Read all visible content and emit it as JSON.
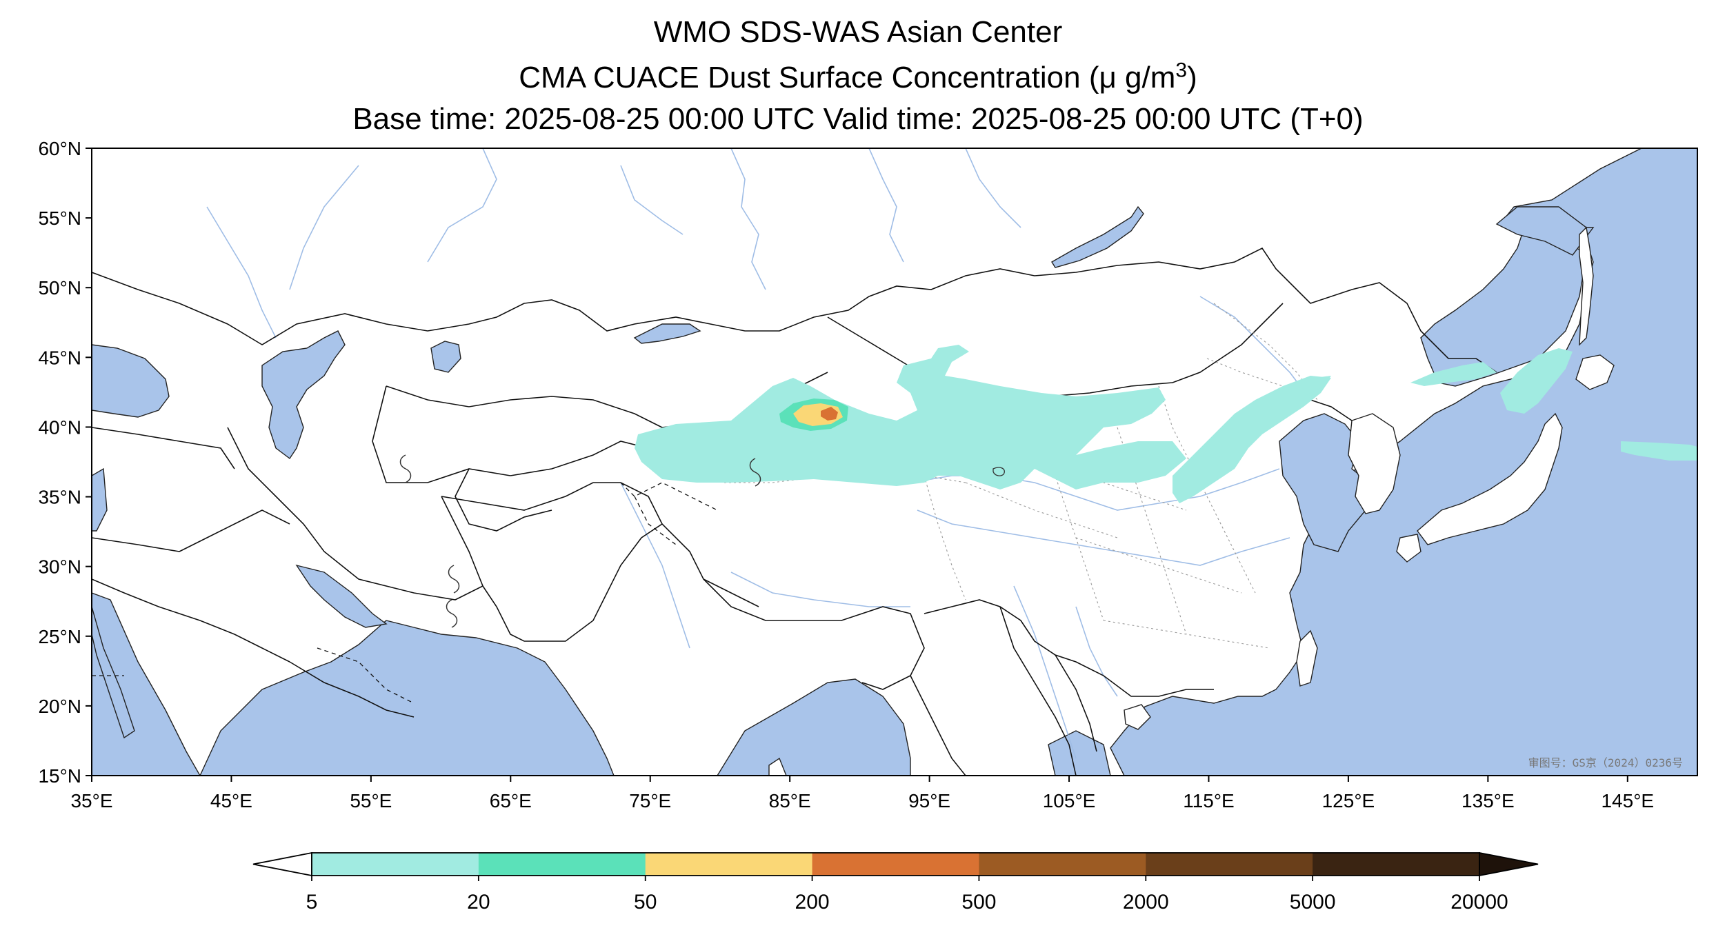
{
  "title": {
    "line1": "WMO SDS-WAS Asian Center",
    "line2_prefix": "CMA CUACE Dust Surface Concentration (μ g/m",
    "line2_sup": "3",
    "line2_suffix": ")",
    "line3": "Base time: 2025-08-25 00:00 UTC Valid time: 2025-08-25 00:00 UTC (T+0)"
  },
  "map": {
    "lon_range": [
      35,
      150
    ],
    "lat_range": [
      15,
      60
    ],
    "lon_ticks": [
      "35°E",
      "45°E",
      "55°E",
      "65°E",
      "75°E",
      "85°E",
      "95°E",
      "105°E",
      "115°E",
      "125°E",
      "135°E",
      "145°E"
    ],
    "lat_ticks": [
      "60°N",
      "55°N",
      "50°N",
      "45°N",
      "40°N",
      "35°N",
      "30°N",
      "25°N",
      "20°N",
      "15°N"
    ],
    "ocean_color": "#a9c4ea",
    "land_color": "#ffffff",
    "watermark": "审图号：GS京（2024）0236号"
  },
  "colorbar": {
    "boundaries": [
      "5",
      "20",
      "50",
      "200",
      "500",
      "2000",
      "5000",
      "20000"
    ],
    "colors": [
      "#a1ebe1",
      "#5be1b9",
      "#fad776",
      "#d97233",
      "#9c5b23",
      "#6a3f1a",
      "#3a2412"
    ],
    "under_color": "#ffffff",
    "over_color": "#1e120a"
  },
  "dust_levels": {
    "broad_plume": "#a1ebe1",
    "ring_20_50": "#5be1b9",
    "core_50_200": "#fad776",
    "peak_200_500": "#d97233"
  }
}
